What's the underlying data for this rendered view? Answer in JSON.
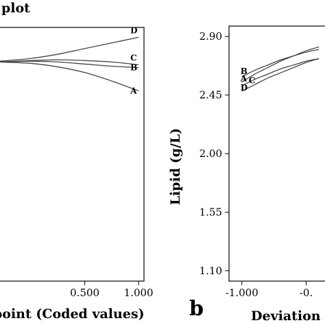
{
  "chart_data": [
    {
      "id": "left",
      "type": "line",
      "title": "plot",
      "xlabel": "point (Coded values)",
      "ylabel": "",
      "xlim": [
        -0.3,
        1.05
      ],
      "ylim": [
        1.1,
        2.9
      ],
      "x_ticks": [
        {
          "value": 0.5,
          "label": "0.500"
        },
        {
          "value": 1.0,
          "label": "1.000"
        }
      ],
      "x_ticks_numeric": [
        0.5,
        1.0
      ],
      "grid": false,
      "series": [
        {
          "name": "D",
          "x": [
            -0.3,
            0.0,
            0.25,
            0.5,
            0.75,
            1.0
          ],
          "y": [
            2.66,
            2.68,
            2.71,
            2.75,
            2.79,
            2.83
          ]
        },
        {
          "name": "C",
          "x": [
            -0.3,
            0.0,
            0.25,
            0.5,
            0.75,
            1.0
          ],
          "y": [
            2.655,
            2.665,
            2.67,
            2.665,
            2.655,
            2.635
          ]
        },
        {
          "name": "B",
          "x": [
            -0.3,
            0.0,
            0.25,
            0.5,
            0.75,
            1.0
          ],
          "y": [
            2.655,
            2.66,
            2.655,
            2.64,
            2.625,
            2.615
          ]
        },
        {
          "name": "A",
          "x": [
            -0.3,
            0.0,
            0.25,
            0.5,
            0.75,
            1.0
          ],
          "y": [
            2.655,
            2.645,
            2.62,
            2.58,
            2.52,
            2.45
          ]
        }
      ]
    },
    {
      "id": "right",
      "type": "line",
      "panel_label": "b",
      "title": "",
      "xlabel": "Deviation",
      "ylabel": "Lipid (g/L)",
      "xlim": [
        -1.1,
        -0.3
      ],
      "ylim": [
        1.02,
        2.98
      ],
      "x_ticks": [
        {
          "value": -1.0,
          "label": "-1.000"
        },
        {
          "value": -0.5,
          "label": "-0."
        }
      ],
      "x_ticks_numeric": [
        -1.0,
        -0.5
      ],
      "y_ticks": [
        {
          "value": 1.1,
          "label": "1.10"
        },
        {
          "value": 1.55,
          "label": "1.55"
        },
        {
          "value": 2.0,
          "label": "2.00"
        },
        {
          "value": 2.45,
          "label": "2.45"
        },
        {
          "value": 2.9,
          "label": "2.90"
        }
      ],
      "y_ticks_numeric": [
        1.1,
        1.55,
        2.0,
        2.45,
        2.9
      ],
      "grid": false,
      "series": [
        {
          "name": "B",
          "x": [
            -1.0,
            -0.9,
            -0.8,
            -0.7,
            -0.6,
            -0.5,
            -0.4
          ],
          "y": [
            2.59,
            2.64,
            2.68,
            2.72,
            2.75,
            2.78,
            2.8
          ]
        },
        {
          "name": "A",
          "x": [
            -1.0,
            -0.9,
            -0.8,
            -0.7,
            -0.6,
            -0.5,
            -0.4
          ],
          "y": [
            2.55,
            2.61,
            2.66,
            2.71,
            2.75,
            2.79,
            2.82
          ]
        },
        {
          "name": "C",
          "x": [
            -1.0,
            -0.9,
            -0.8,
            -0.7,
            -0.6,
            -0.5,
            -0.4
          ],
          "y": [
            2.52,
            2.57,
            2.61,
            2.65,
            2.68,
            2.71,
            2.73
          ]
        },
        {
          "name": "D",
          "x": [
            -1.0,
            -0.9,
            -0.8,
            -0.7,
            -0.6,
            -0.5,
            -0.4
          ],
          "y": [
            2.48,
            2.53,
            2.58,
            2.62,
            2.66,
            2.7,
            2.73
          ]
        }
      ]
    }
  ]
}
